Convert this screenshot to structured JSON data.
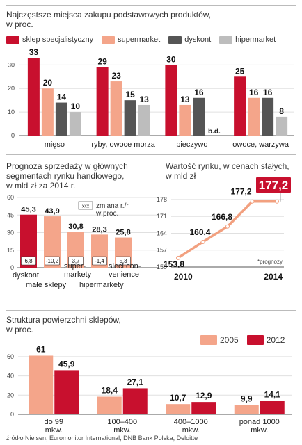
{
  "colors": {
    "red": "#c8102e",
    "salmon": "#f4a58a",
    "dark": "#555555",
    "gray": "#bdbdbd",
    "grid": "#e0e0e0",
    "axis": "#555555",
    "line": "#f2a07f",
    "badge": "#c8102e"
  },
  "chart_data": [
    {
      "type": "bar",
      "title": "Najczęstsze miejsca zakupu podstawowych produktów,",
      "subtitle": "w proc.",
      "categories": [
        "mięso",
        "ryby, owoce morza",
        "pieczywo",
        "owoce, warzywa"
      ],
      "series": [
        {
          "name": "sklep specjalistyczny",
          "color": "#c8102e",
          "values": [
            33,
            29,
            30,
            25
          ]
        },
        {
          "name": "supermarket",
          "color": "#f4a58a",
          "values": [
            20,
            23,
            13,
            16
          ]
        },
        {
          "name": "dyskont",
          "color": "#555555",
          "values": [
            14,
            15,
            16,
            16
          ]
        },
        {
          "name": "hipermarket",
          "color": "#bdbdbd",
          "values": [
            10,
            13,
            null,
            8
          ]
        }
      ],
      "missing_label": "b.d.",
      "yticks": [
        0,
        10,
        20,
        30
      ],
      "ylim": [
        0,
        36
      ]
    },
    {
      "type": "bar",
      "title": "Prognoza sprzedaży w głównych",
      "subtitle": "segmentach rynku handlowego,",
      "subtitle2": "w mld zł za 2014 r.",
      "categories": [
        "dyskont",
        "małe sklepy",
        "supermarkety",
        "hipermarkety",
        "sieci convenience"
      ],
      "category_lines": [
        [
          "dyskont"
        ],
        [
          "małe sklepy"
        ],
        [
          "super-",
          "markety"
        ],
        [
          "hipermarkety"
        ],
        [
          "sieci con-",
          "venience"
        ]
      ],
      "values": [
        45.3,
        43.9,
        30.8,
        28.3,
        25.8
      ],
      "value_labels": [
        "45,3",
        "43,9",
        "30,8",
        "28,3",
        "25,8"
      ],
      "change": [
        "6,8",
        "-10,2",
        "3,7",
        "-1,4",
        "5,3"
      ],
      "change_legend_box": "xxx",
      "change_legend": [
        "zmiana r./r.",
        "w proc."
      ],
      "yticks": [
        0,
        15,
        30,
        45,
        60
      ],
      "ylim": [
        0,
        60
      ]
    },
    {
      "type": "line",
      "title": "Wartość rynku, w cenach stałych,",
      "subtitle": "w mld zł",
      "x": [
        2010,
        2011,
        2012,
        2013,
        2014
      ],
      "values": [
        153.8,
        160.4,
        166.8,
        177.2,
        177.2
      ],
      "value_labels": [
        "153,8",
        "160,4",
        "166,8",
        "177,2",
        "177,2"
      ],
      "xlabels": [
        "2010",
        "2014"
      ],
      "yticks": [
        150,
        157,
        164,
        171,
        178
      ],
      "ylim": [
        150,
        180
      ],
      "note": "*prognozy"
    },
    {
      "type": "bar",
      "title": "Struktura powierzchni sklepów,",
      "subtitle": "w proc.",
      "categories": [
        "do 99 mkw.",
        "100–400 mkw.",
        "400–1000 mkw.",
        "ponad 1000 mkw."
      ],
      "category_lines": [
        [
          "do 99",
          "mkw."
        ],
        [
          "100–400",
          "mkw."
        ],
        [
          "400–1000",
          "mkw."
        ],
        [
          "ponad 1000",
          "mkw."
        ]
      ],
      "series": [
        {
          "name": "2005",
          "color": "#f4a58a",
          "values": [
            61,
            18.4,
            10.7,
            9.9
          ],
          "labels": [
            "61",
            "18,4",
            "10,7",
            "9,9"
          ]
        },
        {
          "name": "2012",
          "color": "#c8102e",
          "values": [
            45.9,
            27.1,
            12.9,
            14.1
          ],
          "labels": [
            "45,9",
            "27,1",
            "12,9",
            "14,1"
          ]
        }
      ],
      "yticks": [
        0,
        20,
        40,
        60
      ],
      "ylim": [
        0,
        70
      ]
    }
  ],
  "source": "źródło Nielsen, Euromonitor International, DNB Bank Polska, Deloitte"
}
